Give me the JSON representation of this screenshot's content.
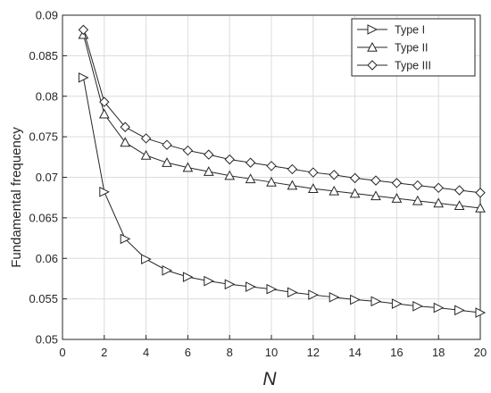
{
  "chart_data": {
    "type": "line",
    "xlabel": "N",
    "ylabel": "Fundamental frequency",
    "xlim": [
      0,
      20
    ],
    "ylim": [
      0.05,
      0.09
    ],
    "xticks": [
      "0",
      "2",
      "4",
      "6",
      "8",
      "10",
      "12",
      "14",
      "16",
      "18",
      "20"
    ],
    "yticks": [
      "0.05",
      "0.055",
      "0.06",
      "0.065",
      "0.07",
      "0.075",
      "0.08",
      "0.085",
      "0.09"
    ],
    "grid": true,
    "legend_position": "top-right",
    "x": [
      1,
      2,
      3,
      4,
      5,
      6,
      7,
      8,
      9,
      10,
      11,
      12,
      13,
      14,
      15,
      16,
      17,
      18,
      19,
      20
    ],
    "series": [
      {
        "name": "Type I",
        "marker": "triangle-right",
        "values": [
          0.0823,
          0.0682,
          0.0624,
          0.0599,
          0.0585,
          0.0577,
          0.0572,
          0.0568,
          0.0565,
          0.0562,
          0.0558,
          0.0555,
          0.0552,
          0.0549,
          0.0547,
          0.0544,
          0.0541,
          0.0539,
          0.0536,
          0.0533
        ]
      },
      {
        "name": "Type II",
        "marker": "triangle-up",
        "values": [
          0.0876,
          0.0778,
          0.0743,
          0.0727,
          0.0718,
          0.0712,
          0.0707,
          0.0702,
          0.0698,
          0.0694,
          0.069,
          0.0686,
          0.0683,
          0.068,
          0.0677,
          0.0674,
          0.0671,
          0.0668,
          0.0665,
          0.0662
        ]
      },
      {
        "name": "Type III",
        "marker": "diamond",
        "values": [
          0.0882,
          0.0793,
          0.0762,
          0.0748,
          0.074,
          0.0733,
          0.0728,
          0.0722,
          0.0718,
          0.0714,
          0.071,
          0.0706,
          0.0703,
          0.0699,
          0.0696,
          0.0693,
          0.069,
          0.0687,
          0.0684,
          0.0681
        ]
      }
    ]
  }
}
